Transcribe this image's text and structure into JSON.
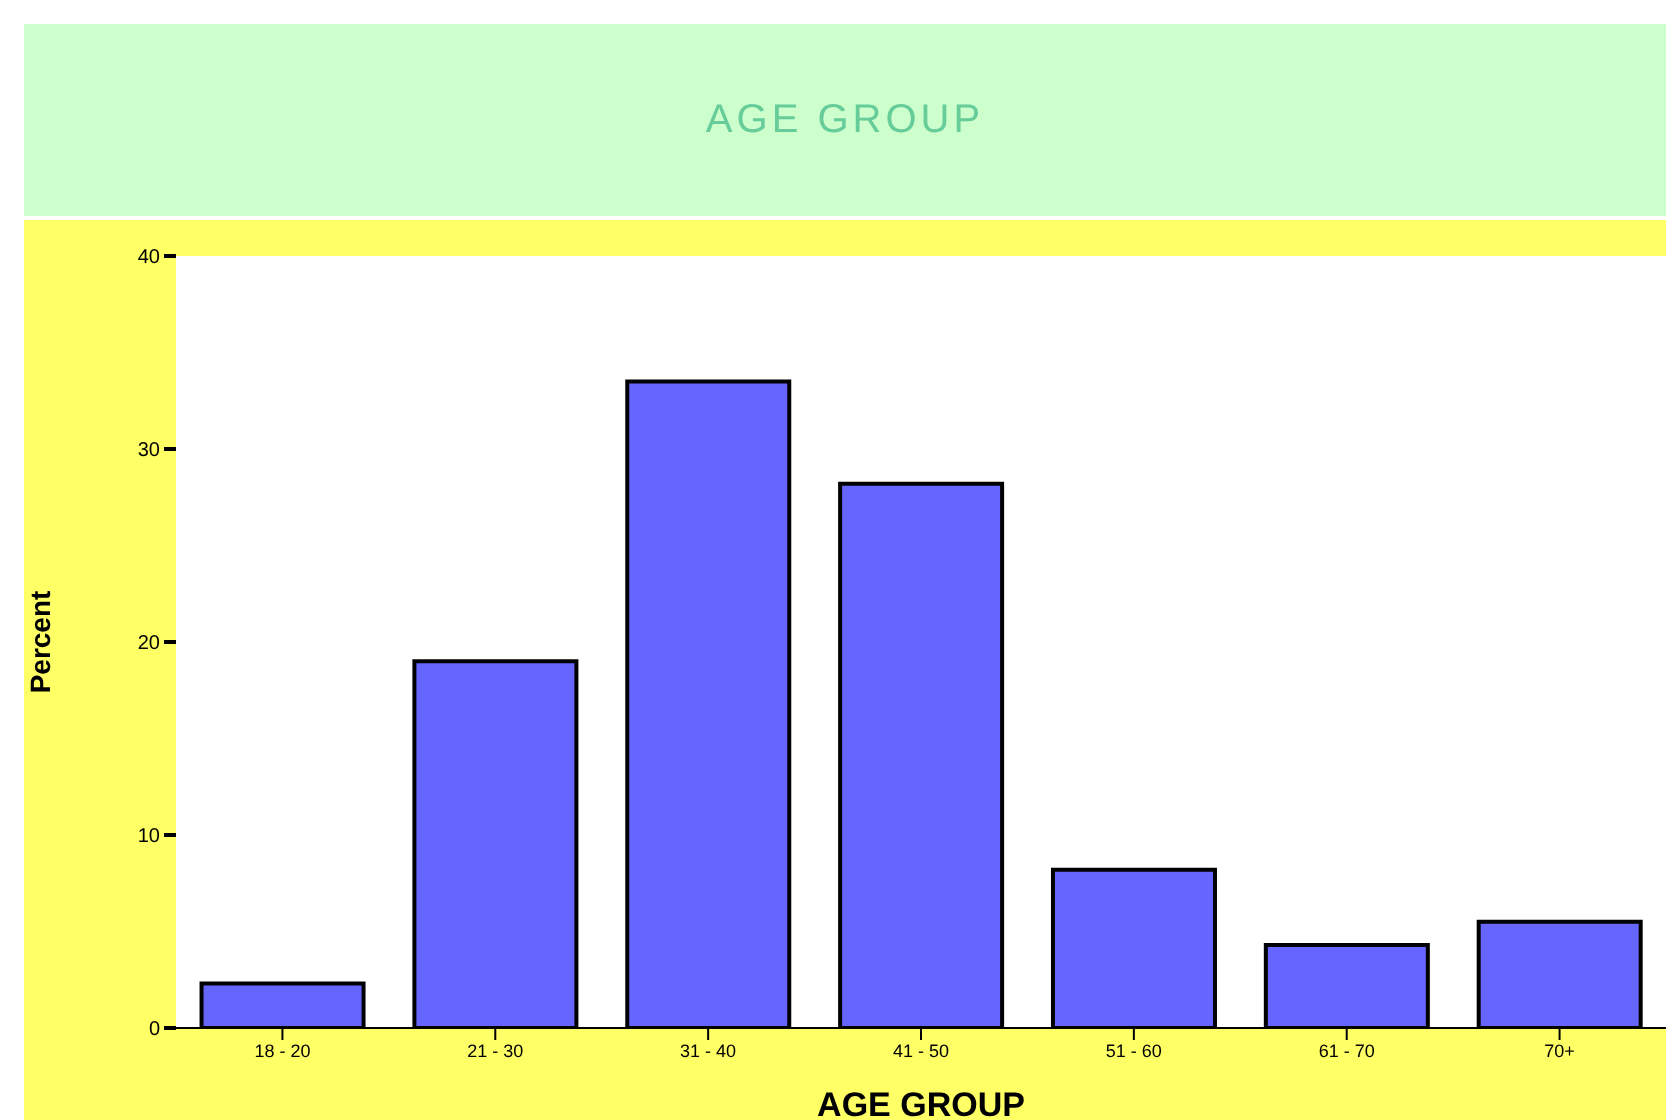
{
  "chart_data": {
    "type": "bar",
    "title": "AGE GROUP",
    "xlabel": "AGE GROUP",
    "ylabel": "Percent",
    "categories": [
      "18 - 20",
      "21 - 30",
      "31 - 40",
      "41 - 50",
      "51 - 60",
      "61 - 70",
      "70+"
    ],
    "values": [
      2.3,
      19.0,
      33.5,
      28.2,
      8.2,
      4.3,
      5.5
    ],
    "color": "#6666ff",
    "ylim": [
      0,
      40
    ],
    "yticks": [
      0,
      10,
      20,
      30,
      40
    ]
  }
}
